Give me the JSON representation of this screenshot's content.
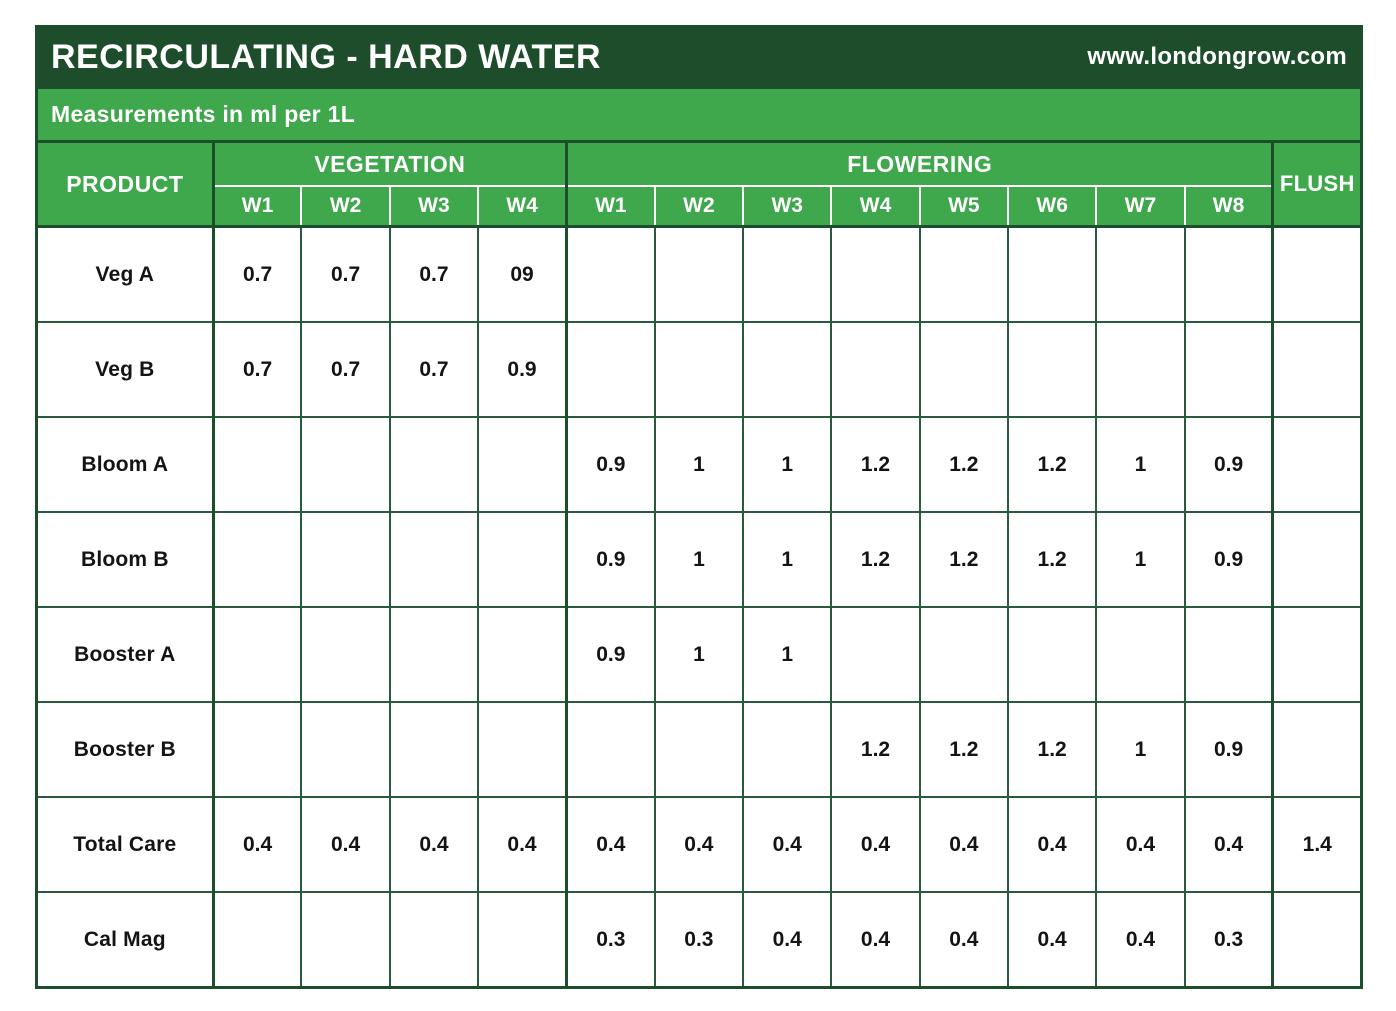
{
  "title_bar": {
    "title": "RECIRCULATING - HARD WATER",
    "website": "www.londongrow.com"
  },
  "subtitle_bar": {
    "text": "Measurements in ml per 1L"
  },
  "table": {
    "product_header": "PRODUCT",
    "flush_header": "FLUSH",
    "groups": [
      {
        "label": "VEGETATION",
        "weeks": [
          "W1",
          "W2",
          "W3",
          "W4"
        ]
      },
      {
        "label": "FLOWERING",
        "weeks": [
          "W1",
          "W2",
          "W3",
          "W4",
          "W5",
          "W6",
          "W7",
          "W8"
        ]
      }
    ],
    "rows": [
      {
        "product": "Veg A",
        "vegetation": [
          "0.7",
          "0.7",
          "0.7",
          "09"
        ],
        "flowering": [
          "",
          "",
          "",
          "",
          "",
          "",
          "",
          ""
        ],
        "flush": ""
      },
      {
        "product": "Veg B",
        "vegetation": [
          "0.7",
          "0.7",
          "0.7",
          "0.9"
        ],
        "flowering": [
          "",
          "",
          "",
          "",
          "",
          "",
          "",
          ""
        ],
        "flush": ""
      },
      {
        "product": "Bloom A",
        "vegetation": [
          "",
          "",
          "",
          ""
        ],
        "flowering": [
          "0.9",
          "1",
          "1",
          "1.2",
          "1.2",
          "1.2",
          "1",
          "0.9"
        ],
        "flush": ""
      },
      {
        "product": "Bloom B",
        "vegetation": [
          "",
          "",
          "",
          ""
        ],
        "flowering": [
          "0.9",
          "1",
          "1",
          "1.2",
          "1.2",
          "1.2",
          "1",
          "0.9"
        ],
        "flush": ""
      },
      {
        "product": "Booster A",
        "vegetation": [
          "",
          "",
          "",
          ""
        ],
        "flowering": [
          "0.9",
          "1",
          "1",
          "",
          "",
          "",
          "",
          ""
        ],
        "flush": ""
      },
      {
        "product": "Booster B",
        "vegetation": [
          "",
          "",
          "",
          ""
        ],
        "flowering": [
          "",
          "",
          "",
          "1.2",
          "1.2",
          "1.2",
          "1",
          "0.9"
        ],
        "flush": ""
      },
      {
        "product": "Total Care",
        "vegetation": [
          "0.4",
          "0.4",
          "0.4",
          "0.4"
        ],
        "flowering": [
          "0.4",
          "0.4",
          "0.4",
          "0.4",
          "0.4",
          "0.4",
          "0.4",
          "0.4"
        ],
        "flush": "1.4"
      },
      {
        "product": "Cal Mag",
        "vegetation": [
          "",
          "",
          "",
          ""
        ],
        "flowering": [
          "0.3",
          "0.3",
          "0.4",
          "0.4",
          "0.4",
          "0.4",
          "0.4",
          "0.3"
        ],
        "flush": ""
      }
    ]
  },
  "chart_data": {
    "type": "table",
    "title": "RECIRCULATING - HARD WATER",
    "subtitle": "Measurements in ml per 1L",
    "source": "www.londongrow.com",
    "columns": [
      "PRODUCT",
      "VEGETATION W1",
      "VEGETATION W2",
      "VEGETATION W3",
      "VEGETATION W4",
      "FLOWERING W1",
      "FLOWERING W2",
      "FLOWERING W3",
      "FLOWERING W4",
      "FLOWERING W5",
      "FLOWERING W6",
      "FLOWERING W7",
      "FLOWERING W8",
      "FLUSH"
    ],
    "rows": [
      [
        "Veg A",
        "0.7",
        "0.7",
        "0.7",
        "09",
        "",
        "",
        "",
        "",
        "",
        "",
        "",
        "",
        ""
      ],
      [
        "Veg B",
        "0.7",
        "0.7",
        "0.7",
        "0.9",
        "",
        "",
        "",
        "",
        "",
        "",
        "",
        "",
        ""
      ],
      [
        "Bloom A",
        "",
        "",
        "",
        "",
        "0.9",
        "1",
        "1",
        "1.2",
        "1.2",
        "1.2",
        "1",
        "0.9",
        ""
      ],
      [
        "Bloom B",
        "",
        "",
        "",
        "",
        "0.9",
        "1",
        "1",
        "1.2",
        "1.2",
        "1.2",
        "1",
        "0.9",
        ""
      ],
      [
        "Booster A",
        "",
        "",
        "",
        "",
        "0.9",
        "1",
        "1",
        "",
        "",
        "",
        "",
        "",
        ""
      ],
      [
        "Booster B",
        "",
        "",
        "",
        "",
        "",
        "",
        "",
        "1.2",
        "1.2",
        "1.2",
        "1",
        "0.9",
        ""
      ],
      [
        "Total Care",
        "0.4",
        "0.4",
        "0.4",
        "0.4",
        "0.4",
        "0.4",
        "0.4",
        "0.4",
        "0.4",
        "0.4",
        "0.4",
        "0.4",
        "1.4"
      ],
      [
        "Cal Mag",
        "",
        "",
        "",
        "",
        "0.3",
        "0.3",
        "0.4",
        "0.4",
        "0.4",
        "0.4",
        "0.4",
        "0.3",
        ""
      ]
    ]
  },
  "colors": {
    "title_bar_background": "#1d4d2a",
    "accent_green": "#3fa74c",
    "grid_line": "#2a5a3d",
    "header_text": "#ffffff",
    "body_text": "#141414"
  }
}
